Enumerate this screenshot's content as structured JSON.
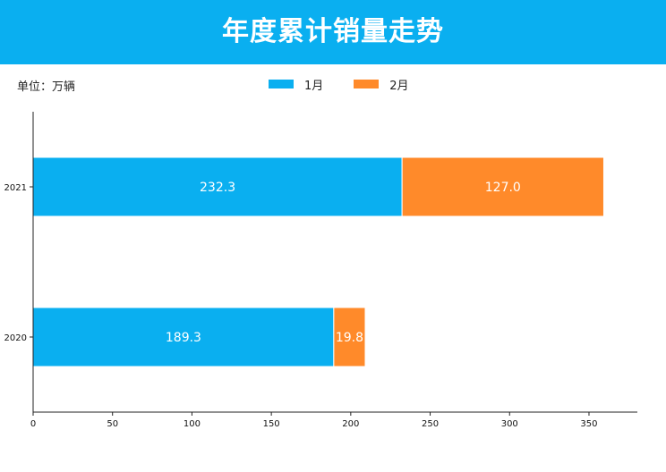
{
  "header": {
    "title": "年度累计销量走势",
    "background": "#0aaff0"
  },
  "unit_label": "单位：万辆",
  "chart_data": {
    "type": "bar",
    "orientation": "horizontal",
    "stacked": true,
    "title": "年度累计销量走势",
    "categories": [
      "2021",
      "2020"
    ],
    "series": [
      {
        "name": "1月",
        "color": "#0aaff0",
        "values": [
          232.3,
          189.3
        ]
      },
      {
        "name": "2月",
        "color": "#ff8a2a",
        "values": [
          127.0,
          19.8
        ]
      }
    ],
    "xlim": [
      0,
      380
    ],
    "xticks": [
      0,
      50,
      100,
      150,
      200,
      250,
      300,
      350
    ],
    "legend_position": "top-center",
    "grid": false
  }
}
